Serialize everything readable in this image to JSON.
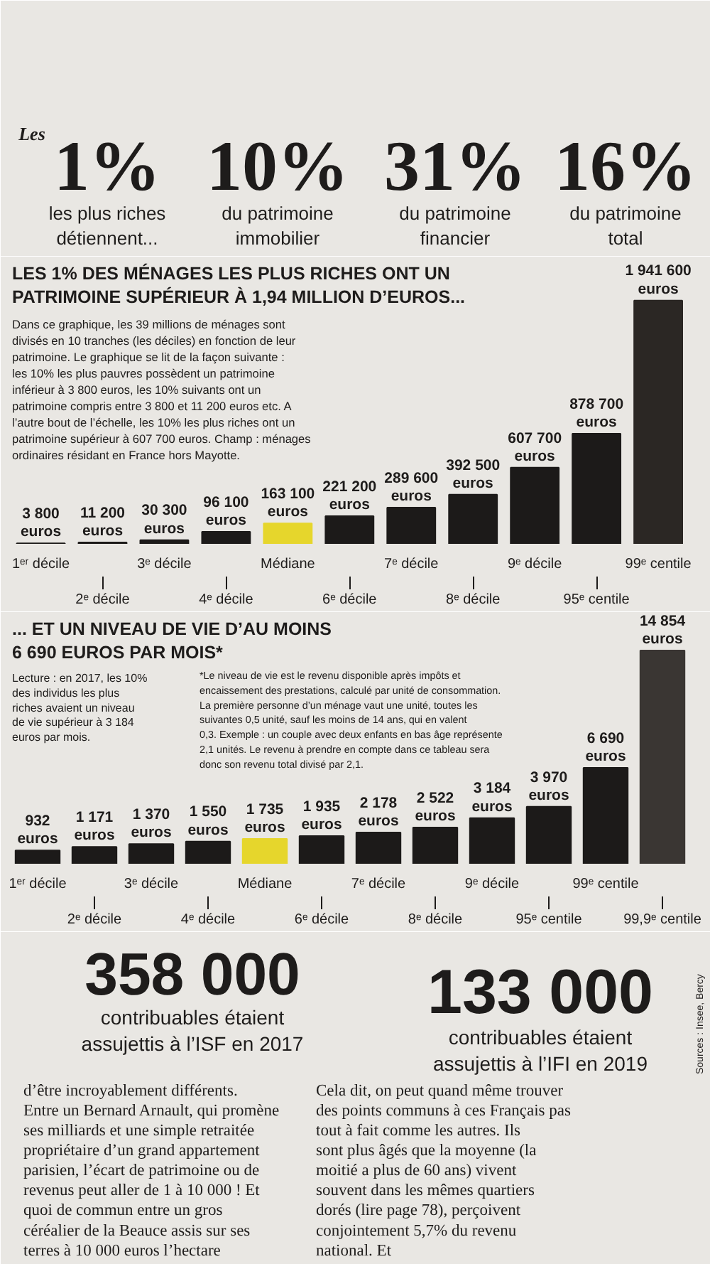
{
  "chart_data": [
    {
      "type": "other",
      "annotations": [
        "Les",
        "1%",
        "les plus riches détiennent...",
        "10%",
        "du patrimoine immobilier",
        "31%",
        "du patrimoine financier",
        "16%",
        "du patrimoine total"
      ]
    },
    {
      "type": "bar",
      "title": "LES 1% DES MÉNAGES LES PLUS RICHES ONT UN PATRIMOINE SUPÉRIEUR À 1,94 MILLION D’EUROS...",
      "categories": [
        "1ᵉʳ décile",
        "2ᵉ décile",
        "3ᵉ décile",
        "4ᵉ décile",
        "Médiane",
        "6ᵉ décile",
        "7ᵉ décile",
        "8ᵉ décile",
        "9ᵉ décile",
        "95ᵉ centile",
        "99ᵉ centile"
      ],
      "values": [
        3800,
        11200,
        30300,
        96100,
        163100,
        221200,
        289600,
        392500,
        607700,
        878700,
        1941600
      ],
      "colors": [
        "#1c1a19",
        "#1c1a19",
        "#1c1a19",
        "#1c1a19",
        "#e6d62c",
        "#1c1a19",
        "#1c1a19",
        "#1c1a19",
        "#1c1a19",
        "#1c1a19",
        "#2b2724"
      ],
      "value_labels": [
        "3 800 euros",
        "11 200 euros",
        "30 300 euros",
        "96 100 euros",
        "163 100 euros",
        "221 200 euros",
        "289 600 euros",
        "392 500 euros",
        "607 700 euros",
        "878 700 euros",
        "1 941 600 euros"
      ],
      "annotations": [
        "Dans ce graphique, les 39 millions de ménages sont divisés en 10 tranches (les déciles) en fonction de leur patrimoine. Le graphique se lit de la façon suivante : les 10% les plus pauvres possèdent un patrimoine inférieur à 3 800 euros, les 10% suivants ont un patrimoine compris entre 3 800 et 11 200 euros etc. A l’autre bout de l’échelle, les 10% les plus riches ont un patrimoine supérieur à 607 700 euros. Champ : ménages ordinaires résidant en France hors Mayotte."
      ]
    },
    {
      "type": "bar",
      "title": "... ET UN NIVEAU DE VIE D’AU MOINS 6 690 EUROS PAR MOIS*",
      "categories": [
        "1ᵉʳ décile",
        "2ᵉ décile",
        "3ᵉ décile",
        "4ᵉ décile",
        "Médiane",
        "6ᵉ décile",
        "7ᵉ décile",
        "8ᵉ décile",
        "9ᵉ décile",
        "95ᵉ centile",
        "99ᵉ centile",
        "99,9ᵉ centile"
      ],
      "values": [
        932,
        1171,
        1370,
        1550,
        1735,
        1935,
        2178,
        2522,
        3184,
        3970,
        6690,
        14854
      ],
      "colors": [
        "#1c1a19",
        "#1c1a19",
        "#1c1a19",
        "#1c1a19",
        "#e6d62c",
        "#1c1a19",
        "#1c1a19",
        "#1c1a19",
        "#1c1a19",
        "#1c1a19",
        "#1c1a19",
        "#3a3633"
      ],
      "value_labels": [
        "932 euros",
        "1 171 euros",
        "1 370 euros",
        "1 550 euros",
        "1 735 euros",
        "1 935 euros",
        "2 178 euros",
        "2 522 euros",
        "3 184 euros",
        "3 970 euros",
        "6 690 euros",
        "14 854 euros"
      ],
      "annotations": [
        "Lecture : en 2017, les 10% des individus les plus riches avaient un niveau de vie supérieur à 3 184 euros par mois.",
        "*Le niveau de vie est le revenu disponible après impôts et encaissement des prestations, calculé par unité de consommation. La première personne d’un ménage vaut une unité, toutes les suivantes 0,5 unité, sauf les moins de 14 ans, qui en valent 0,3. Exemple : un couple avec deux enfants en bas âge représente 2,1 unités. Le revenu à prendre en compte dans ce tableau sera donc son revenu total divisé par 2,1."
      ]
    },
    {
      "type": "other",
      "annotations": [
        "358 000",
        "contribuables étaient assujettis à l’ISF en 2017",
        "133 000",
        "contribuables étaient assujettis à l’IFI en 2019",
        "d’être incroyablement différents. Entre un Bernard Arnault, qui promène ses milliards et une simple retraitée propriétaire d’un grand appartement parisien, l’écart de patrimoine ou de revenus peut aller de 1 à 10 000 ! Et quoi de commun entre un gros céréalier de la Beauce assis sur ses terres à 10 000 euros l’hectare",
        "Cela dit, on peut quand même trouver des points communs à ces Français pas tout à fait comme les autres. Ils sont plus âgés que la moyenne (la moitié a plus de 60 ans) vivent souvent dans les mêmes quartiers dorés (lire page 78), perçoivent conjointement 5,7% du revenu national. Et",
        "Sources : Insee, Bercy"
      ]
    }
  ]
}
